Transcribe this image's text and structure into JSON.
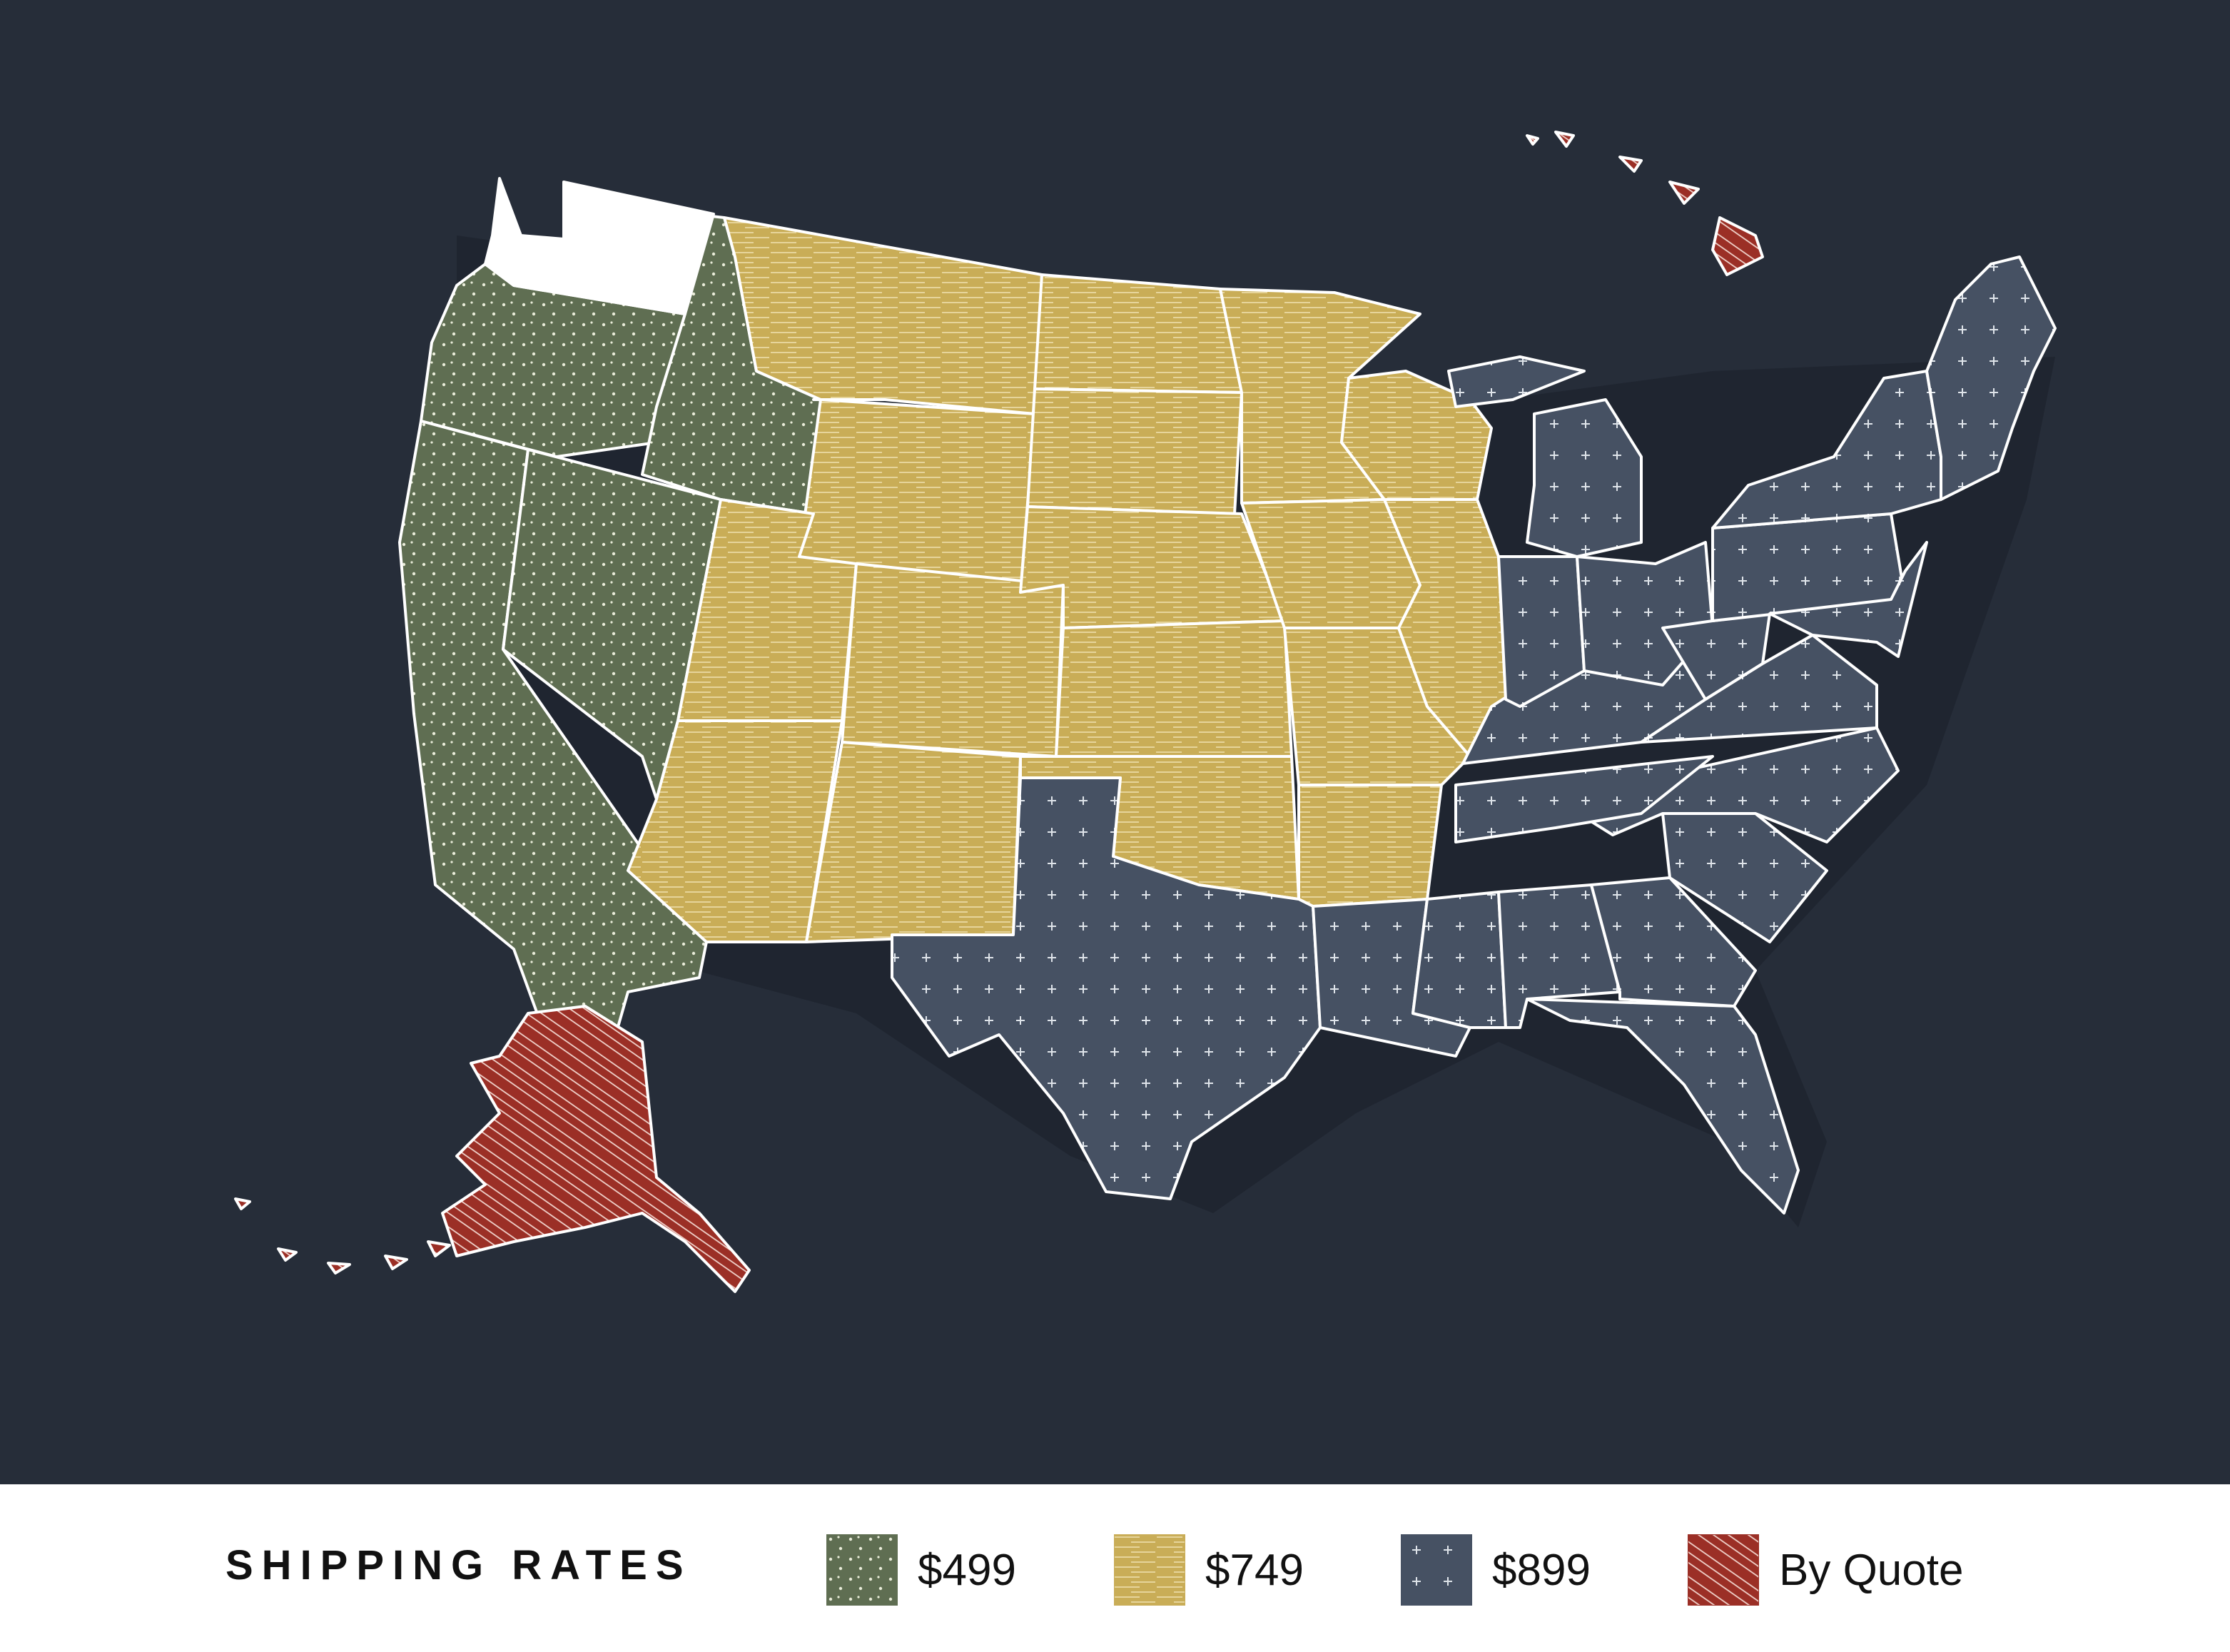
{
  "legend": {
    "title": "SHIPPING RATES",
    "items": [
      {
        "label": "$499",
        "color": "#5f6e52",
        "pattern": "dots",
        "icon": "green-dotted-swatch"
      },
      {
        "label": "$749",
        "color": "#c9ad57",
        "pattern": "dashes",
        "icon": "gold-dashed-swatch"
      },
      {
        "label": "$899",
        "color": "#465163",
        "pattern": "crosses",
        "icon": "slate-cross-swatch"
      },
      {
        "label": "By Quote",
        "color": "#9b2f26",
        "pattern": "hatch",
        "icon": "red-hatched-swatch"
      }
    ]
  },
  "map": {
    "background_color": "#262d39",
    "border_color": "#ffffff",
    "unpriced_state_color": "#ffffff",
    "zones": {
      "$499": [
        "Oregon",
        "California",
        "Nevada",
        "Idaho"
      ],
      "$749": [
        "Montana",
        "Wyoming",
        "Utah",
        "Colorado",
        "Arizona",
        "New Mexico",
        "North Dakota",
        "South Dakota",
        "Nebraska",
        "Kansas",
        "Oklahoma",
        "Minnesota",
        "Iowa",
        "Missouri",
        "Arkansas",
        "Wisconsin",
        "Illinois"
      ],
      "$899": [
        "Texas",
        "Louisiana",
        "Mississippi",
        "Alabama",
        "Georgia",
        "Florida",
        "South Carolina",
        "North Carolina",
        "Tennessee",
        "Kentucky",
        "Indiana",
        "Michigan",
        "Ohio",
        "West Virginia",
        "Virginia",
        "Pennsylvania",
        "New York",
        "New Jersey",
        "Delaware",
        "Maryland",
        "Connecticut",
        "Rhode Island",
        "Massachusetts",
        "Vermont",
        "New Hampshire",
        "Maine"
      ],
      "By Quote": [
        "Alaska",
        "Hawaii"
      ],
      "unpriced": [
        "Washington"
      ]
    }
  }
}
